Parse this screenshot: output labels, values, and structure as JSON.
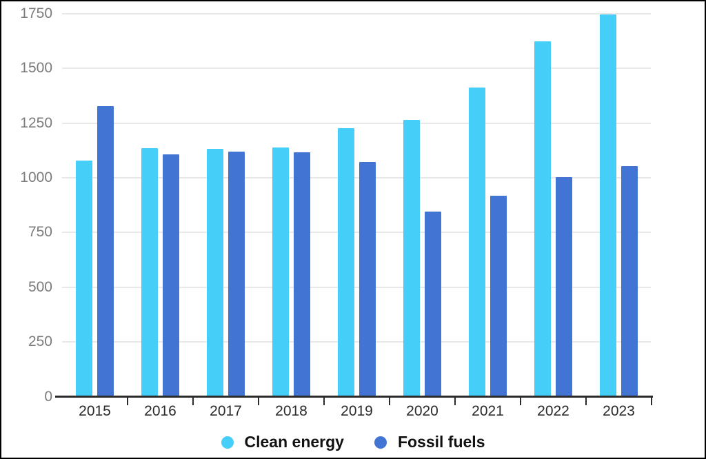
{
  "window": {
    "background_color": "#ffffff",
    "frame_border_color": "#000000"
  },
  "chart_data": {
    "type": "bar",
    "title": "",
    "xlabel": "",
    "ylabel": "",
    "categories": [
      "2015",
      "2016",
      "2017",
      "2018",
      "2019",
      "2020",
      "2021",
      "2022",
      "2023"
    ],
    "series": [
      {
        "name": "Clean energy",
        "color": "#44CEF8",
        "values": [
          1073,
          1129,
          1126,
          1135,
          1222,
          1258,
          1409,
          1617,
          1740
        ]
      },
      {
        "name": "Fossil fuels",
        "color": "#4274D3",
        "values": [
          1322,
          1103,
          1115,
          1111,
          1068,
          840,
          912,
          999,
          1050
        ]
      }
    ],
    "ylim": [
      0,
      1750
    ],
    "yticks": [
      0,
      250,
      500,
      750,
      1000,
      1250,
      1500,
      1750
    ],
    "grid": true,
    "legend_position": "bottom"
  },
  "style": {
    "gridline_color": "#e8e8e8",
    "axis_line_color": "#2b2b2b",
    "y_label_color": "#7b7b7b",
    "x_label_color": "#2b2b2b",
    "legend_text_color": "#111111"
  }
}
